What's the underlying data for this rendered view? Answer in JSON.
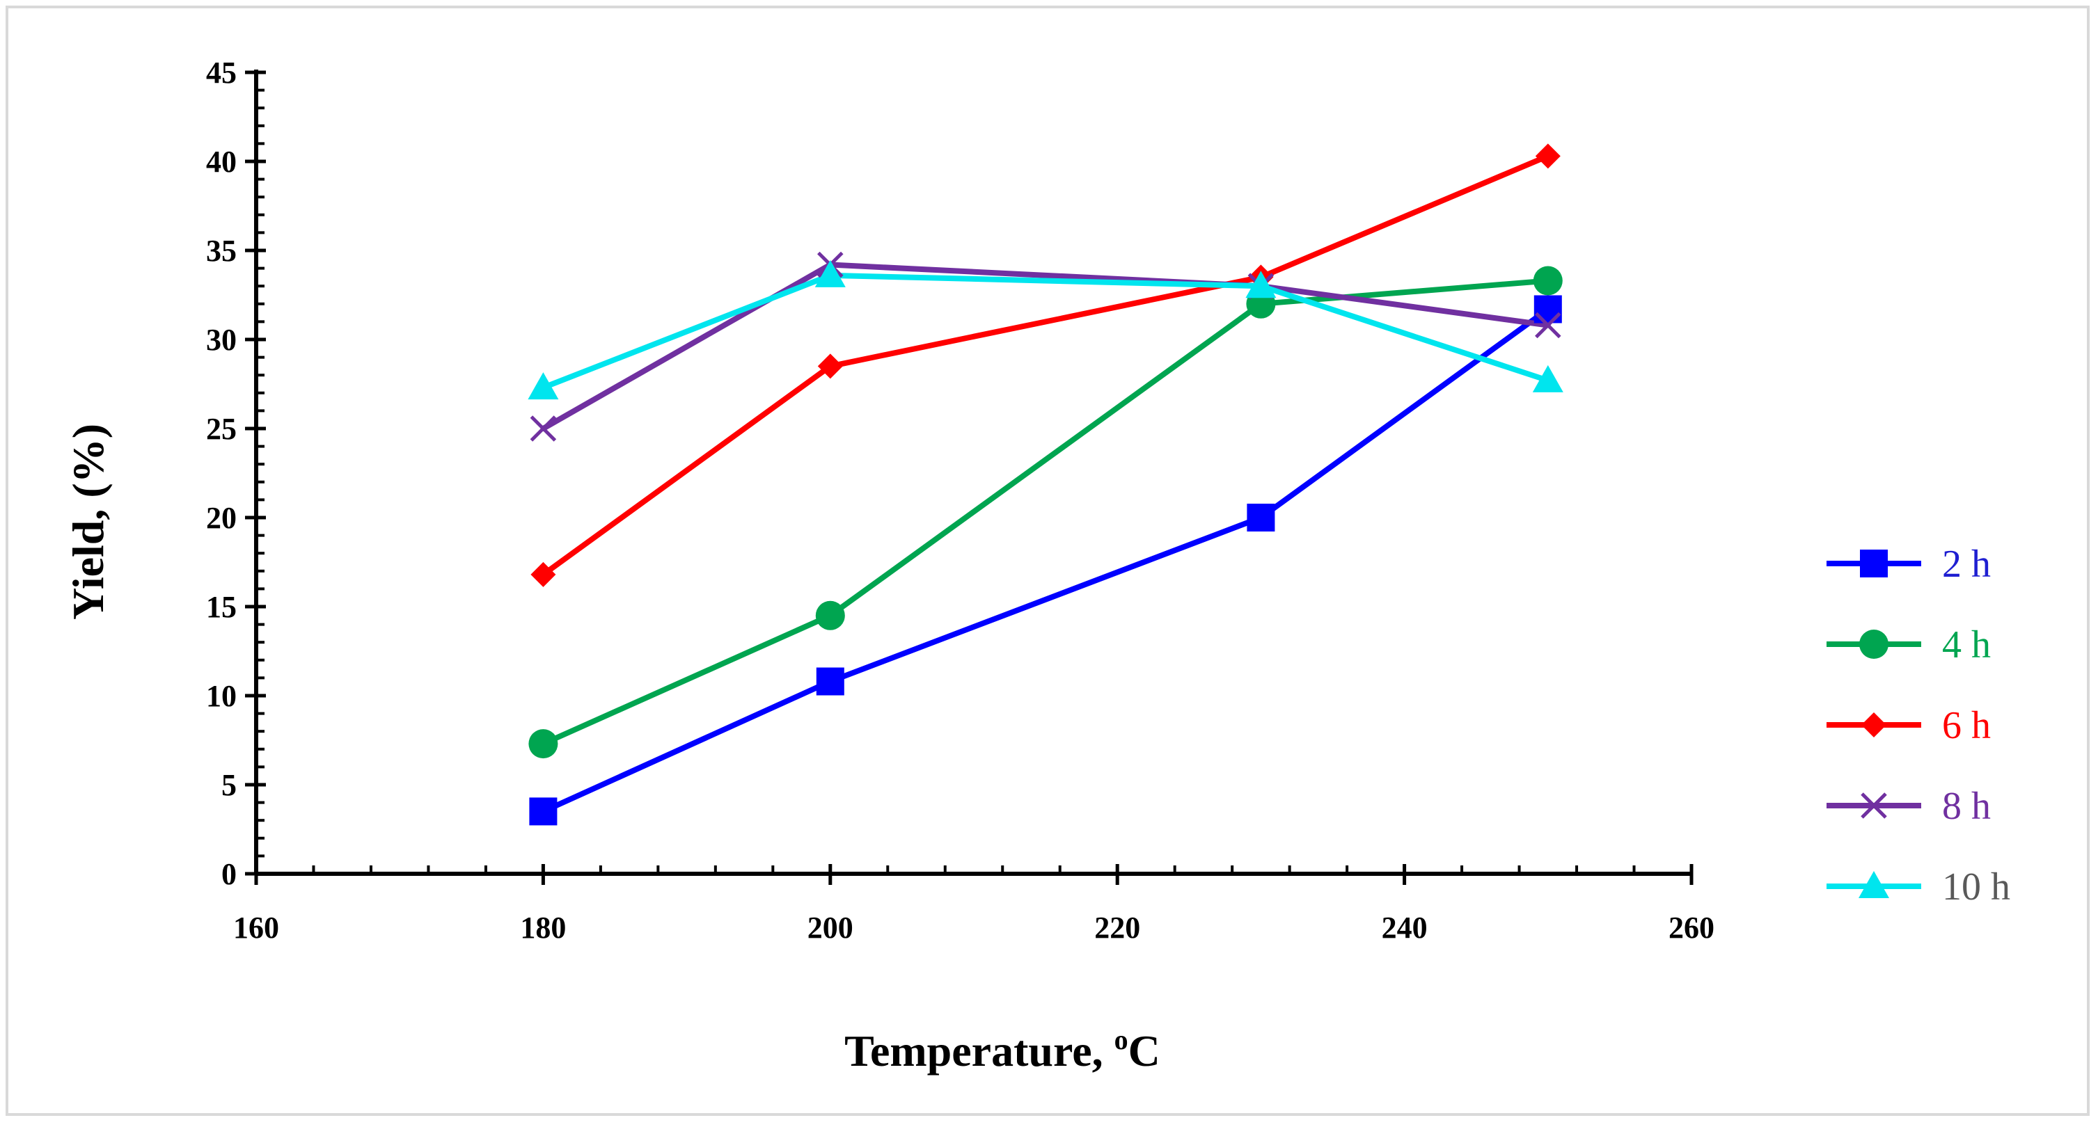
{
  "chart_data": {
    "type": "line",
    "title": "",
    "xlabel": "Temperature, ",
    "xlabel_super": "o",
    "xlabel_suffix": "C",
    "ylabel": "Yield, (%)",
    "xlim": [
      160,
      260
    ],
    "ylim": [
      0,
      45
    ],
    "x_ticks": [
      160,
      180,
      200,
      220,
      240,
      260
    ],
    "y_ticks": [
      0,
      5,
      10,
      15,
      20,
      25,
      30,
      35,
      40,
      45
    ],
    "x_minor_step": 4,
    "y_minor_step": 1,
    "grid": false,
    "legend_position": "right",
    "x": [
      180,
      200,
      230,
      250
    ],
    "series": [
      {
        "name": "2 h",
        "values": [
          3.5,
          10.8,
          20.0,
          31.7
        ],
        "color": "#0000ff",
        "label_color": "#1f1fd1",
        "marker": "square"
      },
      {
        "name": "4 h",
        "values": [
          7.3,
          14.5,
          32.0,
          33.3
        ],
        "color": "#00a550",
        "label_color": "#00a550",
        "marker": "circle"
      },
      {
        "name": "6 h",
        "values": [
          16.8,
          28.5,
          33.5,
          40.3
        ],
        "color": "#ff0000",
        "label_color": "#ff0000",
        "marker": "diamond"
      },
      {
        "name": "8 h",
        "values": [
          25.0,
          34.2,
          33.0,
          30.8
        ],
        "color": "#7030a0",
        "label_color": "#7030a0",
        "marker": "x"
      },
      {
        "name": "10 h",
        "values": [
          27.3,
          33.6,
          33.0,
          27.7
        ],
        "color": "#00e5ee",
        "label_color": "#595959",
        "marker": "triangle"
      }
    ]
  }
}
